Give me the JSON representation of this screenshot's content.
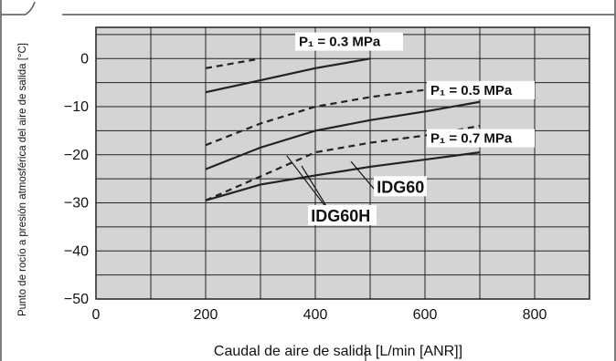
{
  "chart_data": {
    "type": "line",
    "title": "",
    "xlabel": "Caudal de aire de salida [L/min [ANR]]",
    "ylabel": "Punto de rocío a presión atmosférica del aire de salida [°C]",
    "xlim": [
      0,
      900
    ],
    "ylim": [
      -50,
      6.5
    ],
    "xticks": [
      0,
      200,
      400,
      600,
      800
    ],
    "yticks": [
      0,
      -10,
      -20,
      -30,
      -40,
      -50
    ],
    "xtick_labels": [
      "0",
      "200",
      "400",
      "600",
      "800"
    ],
    "ytick_labels": [
      "0",
      "−10",
      "−20",
      "−30",
      "−40",
      "−50"
    ],
    "grid": true,
    "series": [
      {
        "model": "IDG60",
        "pressure": "P1 = 0.3 MPa",
        "style": "solid",
        "x": [
          200,
          300,
          400,
          500
        ],
        "y": [
          -7,
          -4.5,
          -2,
          0
        ]
      },
      {
        "model": "IDG60H",
        "pressure": "P1 = 0.3 MPa",
        "style": "dashed",
        "x": [
          200,
          300
        ],
        "y": [
          -2,
          0
        ]
      },
      {
        "model": "IDG60",
        "pressure": "P1 = 0.5 MPa",
        "style": "solid",
        "x": [
          200,
          300,
          400,
          500,
          600,
          700
        ],
        "y": [
          -23,
          -18.5,
          -15,
          -12.8,
          -11,
          -9
        ]
      },
      {
        "model": "IDG60H",
        "pressure": "P1 = 0.5 MPa",
        "style": "dashed",
        "x": [
          200,
          300,
          400,
          500,
          600,
          700
        ],
        "y": [
          -18,
          -13.5,
          -10,
          -8,
          -6.5,
          -5
        ]
      },
      {
        "model": "IDG60",
        "pressure": "P1 = 0.7 MPa",
        "style": "solid",
        "x": [
          200,
          300,
          400,
          500,
          600,
          700
        ],
        "y": [
          -29.5,
          -26.2,
          -24.3,
          -22.5,
          -21,
          -19.5
        ]
      },
      {
        "model": "IDG60H",
        "pressure": "P1 = 0.7 MPa",
        "style": "dashed",
        "x": [
          200,
          300,
          400,
          500,
          600,
          700
        ],
        "y": [
          -29.5,
          -24.5,
          -19.5,
          -17.5,
          -16,
          -14
        ]
      }
    ],
    "annotations": [
      {
        "text": "P₁ = 0.3 MPa"
      },
      {
        "text": "P₁ = 0.5 MPa"
      },
      {
        "text": "P₁ = 0.7 MPa"
      },
      {
        "text": "IDG60"
      },
      {
        "text": "IDG60H"
      }
    ],
    "colors": {
      "plot_bg": "#d4d4d4",
      "line": "#222222",
      "grid": "#222222"
    }
  }
}
